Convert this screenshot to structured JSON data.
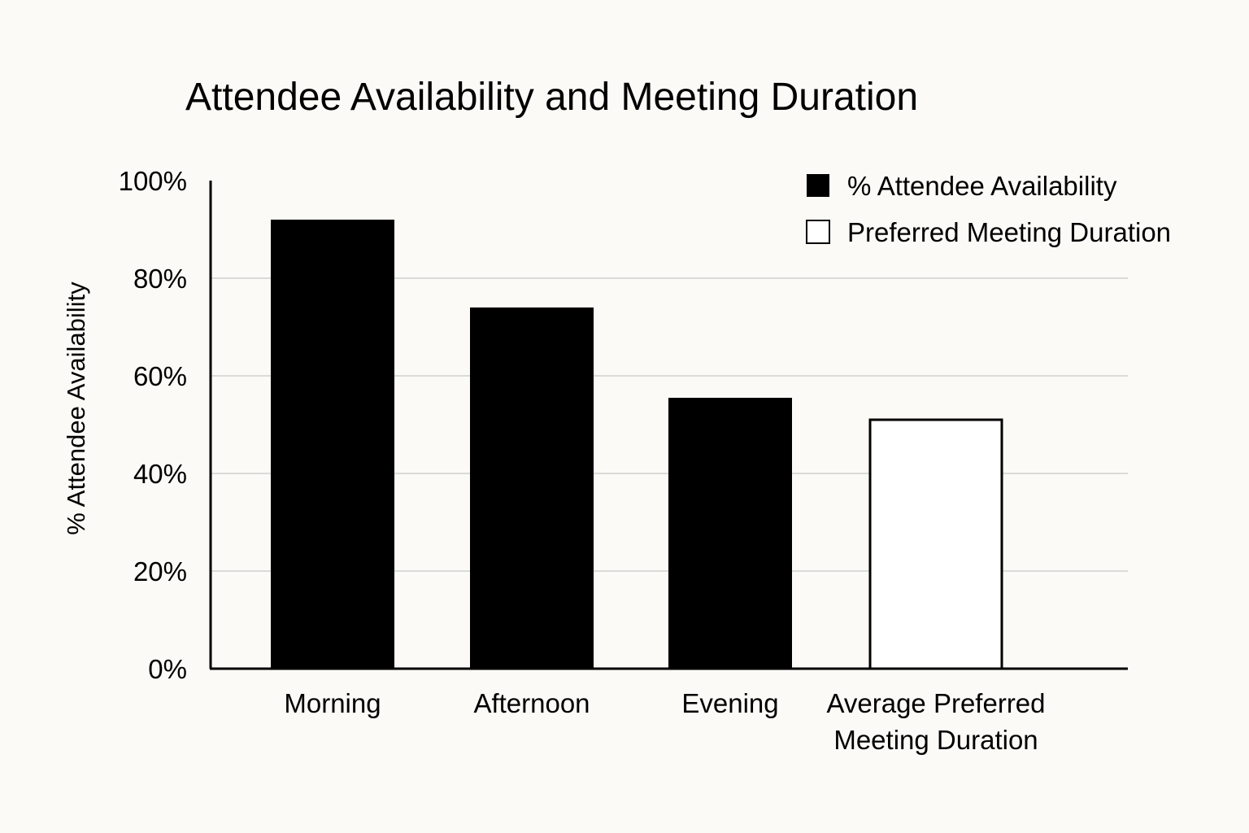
{
  "chart_data": {
    "type": "bar",
    "title": "Attendee Availability and Meeting Duration",
    "xlabel": "",
    "ylabel": "% Attendee Availability",
    "ylim": [
      0,
      100
    ],
    "y_ticks": [
      "0%",
      "20%",
      "40%",
      "60%",
      "80%",
      "100%"
    ],
    "grid": true,
    "legend_position": "top-right",
    "categories": [
      [
        "Morning"
      ],
      [
        "Afternoon"
      ],
      [
        "Evening"
      ],
      [
        "Average Preferred",
        "Meeting Duration"
      ]
    ],
    "series": [
      {
        "name": "% Attendee Availability",
        "style": "filled",
        "color": "#000000",
        "values": [
          92,
          74,
          55.5,
          null
        ]
      },
      {
        "name": "Preferred Meeting Duration",
        "style": "outline",
        "color": "#ffffff",
        "values": [
          null,
          null,
          null,
          51
        ]
      }
    ]
  }
}
